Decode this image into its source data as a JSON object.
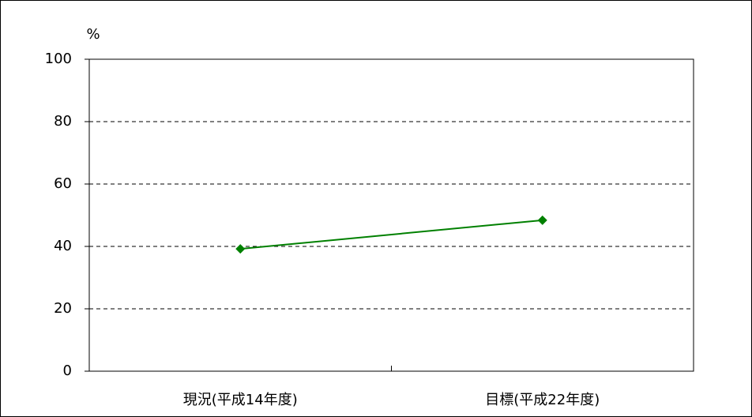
{
  "chart_data": {
    "type": "line",
    "ylabel": "%",
    "categories": [
      "現況(平成14年度)",
      "目標(平成22年度)"
    ],
    "series": [
      {
        "color": "#008000",
        "values": [
          39.2,
          48.4
        ]
      }
    ],
    "ylim": [
      0,
      100
    ],
    "yticks": [
      0,
      20,
      40,
      60,
      80,
      100
    ],
    "grid": true
  }
}
